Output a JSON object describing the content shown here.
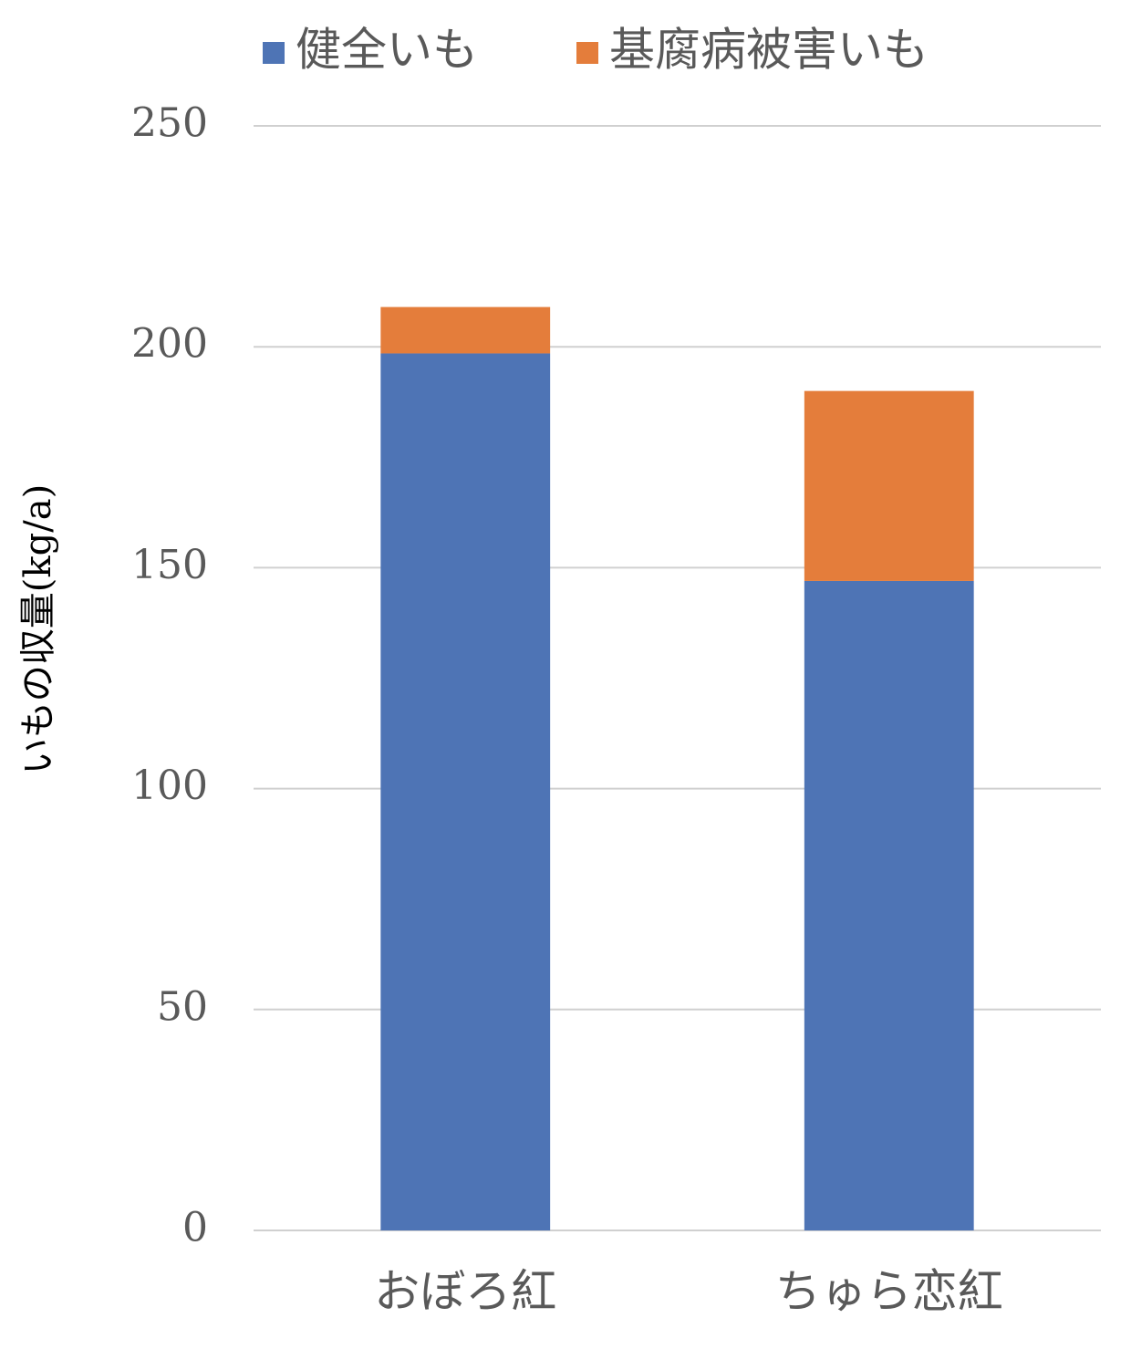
{
  "chart_data": {
    "type": "stacked_bar",
    "y_label": "いもの収量(kg/a)",
    "categories": [
      "おぼろ紅",
      "ちゅら恋紅"
    ],
    "series": [
      {
        "name": "健全いも",
        "color": "#4e74b5",
        "values": [
          198.5,
          147
        ]
      },
      {
        "name": "基腐病被害いも",
        "color": "#e47d3b",
        "values": [
          10.5,
          43
        ]
      }
    ],
    "ylim": [
      0,
      250
    ],
    "yticks": [
      0,
      50,
      100,
      150,
      200,
      250
    ],
    "grid": true
  }
}
